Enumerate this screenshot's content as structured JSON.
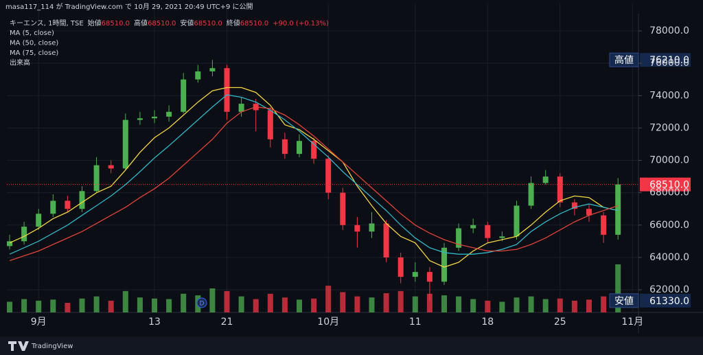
{
  "header": "masa117_114 が TradingView.com で 10月 29, 2021 20:49 UTC+9 に公開",
  "footer": "TradingView",
  "chart_data": {
    "type": "candlestick",
    "legend": {
      "symbol": "キーエンス, 1時間, TSE",
      "items": [
        {
          "label": "始値",
          "value": "68510.0"
        },
        {
          "label": "高値",
          "value": "68510.0"
        },
        {
          "label": "安値",
          "value": "68510.0"
        },
        {
          "label": "終値",
          "value": "68510.0"
        }
      ],
      "change": "+90.0 (+0.13%)"
    },
    "categories": [
      null,
      null,
      "9月",
      null,
      null,
      null,
      null,
      null,
      null,
      null,
      "13",
      null,
      null,
      null,
      null,
      "21",
      null,
      null,
      null,
      null,
      null,
      null,
      "10月",
      null,
      null,
      null,
      null,
      null,
      "11",
      null,
      null,
      null,
      null,
      "18",
      null,
      null,
      null,
      null,
      "25",
      null,
      null,
      null,
      null,
      "11月"
    ],
    "open": [
      64700,
      65000,
      65900,
      66700,
      67500,
      67000,
      68100,
      69700,
      69500,
      72500,
      72600,
      72700,
      73000,
      75000,
      75500,
      75700,
      73000,
      73500,
      73100,
      71300,
      70400,
      71200,
      70100,
      68000,
      66000,
      65600,
      66100,
      64000,
      62800,
      63100,
      62500,
      64600,
      65800,
      66000,
      65200,
      65300,
      67200,
      68600,
      69000,
      67400,
      67000,
      66600,
      65400,
      null
    ],
    "high": [
      65400,
      66200,
      67000,
      67900,
      67800,
      68400,
      70200,
      70000,
      72900,
      73000,
      73100,
      73400,
      75400,
      75900,
      76210,
      75900,
      73900,
      73800,
      73300,
      71700,
      71600,
      71400,
      70300,
      68300,
      66500,
      66800,
      66300,
      64300,
      63700,
      63400,
      64900,
      66100,
      66400,
      66200,
      65600,
      67500,
      69000,
      69400,
      69200,
      67600,
      67300,
      66800,
      68900,
      null
    ],
    "low": [
      64500,
      64800,
      65700,
      66500,
      66800,
      66800,
      68000,
      69200,
      69400,
      72200,
      72300,
      72400,
      72900,
      74800,
      75200,
      72500,
      72700,
      71800,
      70800,
      70100,
      70200,
      69800,
      67600,
      65700,
      64600,
      65200,
      63700,
      62400,
      62500,
      61330,
      62300,
      64400,
      65500,
      64900,
      65000,
      65100,
      67000,
      68500,
      67100,
      66600,
      66200,
      64900,
      65100,
      null
    ],
    "close": [
      65000,
      65900,
      66700,
      67500,
      67000,
      68100,
      69700,
      69500,
      72500,
      72600,
      72700,
      73000,
      75000,
      75500,
      75700,
      73000,
      73500,
      73100,
      71300,
      70400,
      71200,
      70100,
      68000,
      66000,
      65600,
      66100,
      64000,
      62800,
      63100,
      62500,
      64600,
      65800,
      66000,
      65200,
      65300,
      67200,
      68600,
      69000,
      67400,
      67000,
      66600,
      65400,
      68510,
      null
    ],
    "up_color": "#4caf50",
    "down_color": "#f23645",
    "series": [
      {
        "name": "MA (5, close)",
        "color": "#f5d742",
        "values": [
          64900,
          65300,
          65800,
          66400,
          66800,
          67400,
          68000,
          68400,
          69400,
          70500,
          71400,
          72000,
          72800,
          73600,
          74300,
          74500,
          74500,
          74200,
          73400,
          72200,
          71900,
          71300,
          70600,
          69900,
          68400,
          67200,
          66100,
          65300,
          64900,
          63800,
          63400,
          63700,
          64400,
          64900,
          65100,
          65300,
          66000,
          66800,
          67500,
          67800,
          67700,
          67100,
          66900,
          null
        ]
      },
      {
        "name": "MA (50, close)",
        "color": "#2fb8c8",
        "values": [
          64200,
          64600,
          65000,
          65500,
          66000,
          66600,
          67200,
          67800,
          68500,
          69300,
          70150,
          70900,
          71700,
          72500,
          73300,
          74050,
          73900,
          73600,
          73100,
          72500,
          71800,
          71000,
          70200,
          69300,
          68500,
          67700,
          66900,
          66000,
          65200,
          64600,
          64300,
          64200,
          64200,
          64300,
          64500,
          64800,
          65600,
          66200,
          66700,
          67100,
          67300,
          67100,
          66900,
          null
        ]
      },
      {
        "name": "MA (75, close)",
        "color": "#e0443a",
        "values": [
          63800,
          64100,
          64400,
          64800,
          65200,
          65600,
          66100,
          66600,
          67100,
          67700,
          68250,
          68900,
          69700,
          70500,
          71300,
          72300,
          73000,
          73300,
          73200,
          72800,
          72200,
          71500,
          70700,
          69900,
          69100,
          68300,
          67500,
          66700,
          66000,
          65500,
          65100,
          64800,
          64600,
          64400,
          64400,
          64500,
          64800,
          65200,
          65700,
          66200,
          66600,
          66900,
          67200,
          null
        ]
      }
    ],
    "volume_name": "出来高",
    "volume": [
      20000,
      25000,
      22000,
      24000,
      18000,
      26000,
      30000,
      22000,
      40000,
      28000,
      26000,
      25000,
      35000,
      32000,
      45000,
      40000,
      30000,
      25000,
      35000,
      28000,
      24000,
      26000,
      50000,
      38000,
      30000,
      28000,
      36000,
      40000,
      30000,
      35000,
      32000,
      30000,
      25000,
      22000,
      20000,
      28000,
      30000,
      25000,
      26000,
      22000,
      24000,
      30000,
      90000,
      null
    ],
    "dividend_marker": "D",
    "ylim": [
      60600,
      79700
    ],
    "yticks": [
      {
        "value": 62000,
        "label": "62000.0"
      },
      {
        "value": 64000,
        "label": "64000.0"
      },
      {
        "value": 66000,
        "label": "66000.0"
      },
      {
        "value": 68000,
        "label": "68000.0"
      },
      {
        "value": 70000,
        "label": "70000.0"
      },
      {
        "value": 72000,
        "label": "72000.0"
      },
      {
        "value": 74000,
        "label": "74000.0"
      },
      {
        "value": 76000,
        "label": "76000.0"
      },
      {
        "value": 78000,
        "label": "78000.0"
      }
    ],
    "last_price": {
      "value": 68510,
      "label": "68510.0",
      "color": "#f23645"
    },
    "markers": [
      {
        "name": "高値",
        "value": 76210,
        "label": "76210.0"
      },
      {
        "name": "安値",
        "value": 61330,
        "label": "61330.0"
      }
    ],
    "grid": true
  }
}
